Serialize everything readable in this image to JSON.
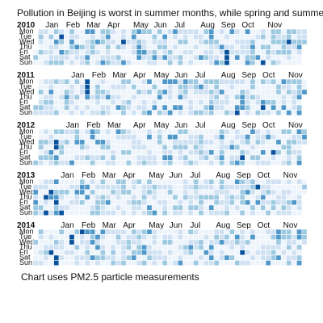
{
  "title": "Pollution in Beijing is worst in summer months, while spring and summer",
  "caption": "Chart uses PM2.5 particle measurements",
  "colors": {
    "scale": [
      "#eef4fb",
      "#cfe1f2",
      "#9ecae1",
      "#4f98c9",
      "#08519c"
    ]
  },
  "chart_data": {
    "type": "heatmap",
    "layout": "calendar",
    "color_scale": "blues",
    "weekdays": [
      "Mon",
      "Tue",
      "Wed",
      "Thu",
      "Fri",
      "Sat",
      "Sun"
    ],
    "months": [
      "Jan",
      "Feb",
      "Mar",
      "Apr",
      "May",
      "Jun",
      "Jul",
      "Aug",
      "Sep",
      "Oct",
      "Nov"
    ],
    "panels": [
      {
        "year": "2010",
        "start_weekday": 4,
        "weeks": 53,
        "month_marks": [
          [
            "Jan",
            3
          ],
          [
            "Feb",
            7
          ],
          [
            "Mar",
            11
          ],
          [
            "Apr",
            15
          ],
          [
            "May",
            20
          ],
          [
            "Jun",
            24
          ],
          [
            "Jul",
            28
          ],
          [
            "Aug",
            33
          ],
          [
            "Sep",
            37
          ],
          [
            "Oct",
            41
          ],
          [
            "Nov",
            46
          ]
        ],
        "dark_cells": [
          [
            5,
            1
          ],
          [
            17,
            2
          ],
          [
            37,
            4
          ],
          [
            37,
            5
          ],
          [
            37,
            6
          ],
          [
            49,
            2
          ],
          [
            44,
            6
          ]
        ]
      },
      {
        "year": "2011",
        "start_weekday": 5,
        "weeks": 53,
        "month_marks": [
          [
            "Jan",
            8
          ],
          [
            "Feb",
            12
          ],
          [
            "Mar",
            16
          ],
          [
            "Apr",
            20
          ],
          [
            "May",
            24
          ],
          [
            "Jun",
            28
          ],
          [
            "Jul",
            32
          ],
          [
            "Aug",
            37
          ],
          [
            "Sep",
            41
          ],
          [
            "Oct",
            45
          ],
          [
            "Nov",
            50
          ]
        ],
        "dark_cells": [
          [
            10,
            0
          ],
          [
            10,
            1
          ],
          [
            10,
            2
          ],
          [
            39,
            6
          ],
          [
            44,
            5
          ]
        ]
      },
      {
        "year": "2012",
        "start_weekday": 6,
        "weeks": 53,
        "month_marks": [
          [
            "Jan",
            7
          ],
          [
            "Feb",
            11
          ],
          [
            "Mar",
            15
          ],
          [
            "Apr",
            20
          ],
          [
            "May",
            24
          ],
          [
            "Jun",
            28
          ],
          [
            "Jul",
            32
          ],
          [
            "Aug",
            37
          ],
          [
            "Sep",
            41
          ],
          [
            "Oct",
            45
          ],
          [
            "Nov",
            50
          ]
        ],
        "dark_cells": [
          [
            4,
            2
          ],
          [
            4,
            3
          ],
          [
            40,
            5
          ],
          [
            46,
            4
          ]
        ]
      },
      {
        "year": "2013",
        "start_weekday": 1,
        "weeks": 53,
        "month_marks": [
          [
            "Jan",
            6
          ],
          [
            "Feb",
            10
          ],
          [
            "Mar",
            14
          ],
          [
            "Apr",
            18
          ],
          [
            "May",
            23
          ],
          [
            "Jun",
            27
          ],
          [
            "Jul",
            31
          ],
          [
            "Aug",
            36
          ],
          [
            "Sep",
            40
          ],
          [
            "Oct",
            44
          ],
          [
            "Nov",
            49
          ]
        ],
        "dark_cells": [
          [
            2,
            3
          ],
          [
            3,
            2
          ],
          [
            2,
            6
          ],
          [
            4,
            4
          ],
          [
            5,
            6
          ],
          [
            43,
            1
          ]
        ]
      },
      {
        "year": "2014",
        "start_weekday": 2,
        "weeks": 53,
        "month_marks": [
          [
            "Jan",
            6
          ],
          [
            "Feb",
            10
          ],
          [
            "Mar",
            14
          ],
          [
            "Apr",
            18
          ],
          [
            "May",
            23
          ],
          [
            "Jun",
            27
          ],
          [
            "Jul",
            31
          ],
          [
            "Aug",
            36
          ],
          [
            "Sep",
            40
          ],
          [
            "Oct",
            44
          ],
          [
            "Nov",
            49
          ]
        ],
        "dark_cells": [
          [
            7,
            1
          ],
          [
            7,
            2
          ],
          [
            9,
            0
          ],
          [
            3,
            4
          ],
          [
            4,
            5
          ],
          [
            4,
            6
          ],
          [
            40,
            4
          ]
        ]
      }
    ]
  }
}
